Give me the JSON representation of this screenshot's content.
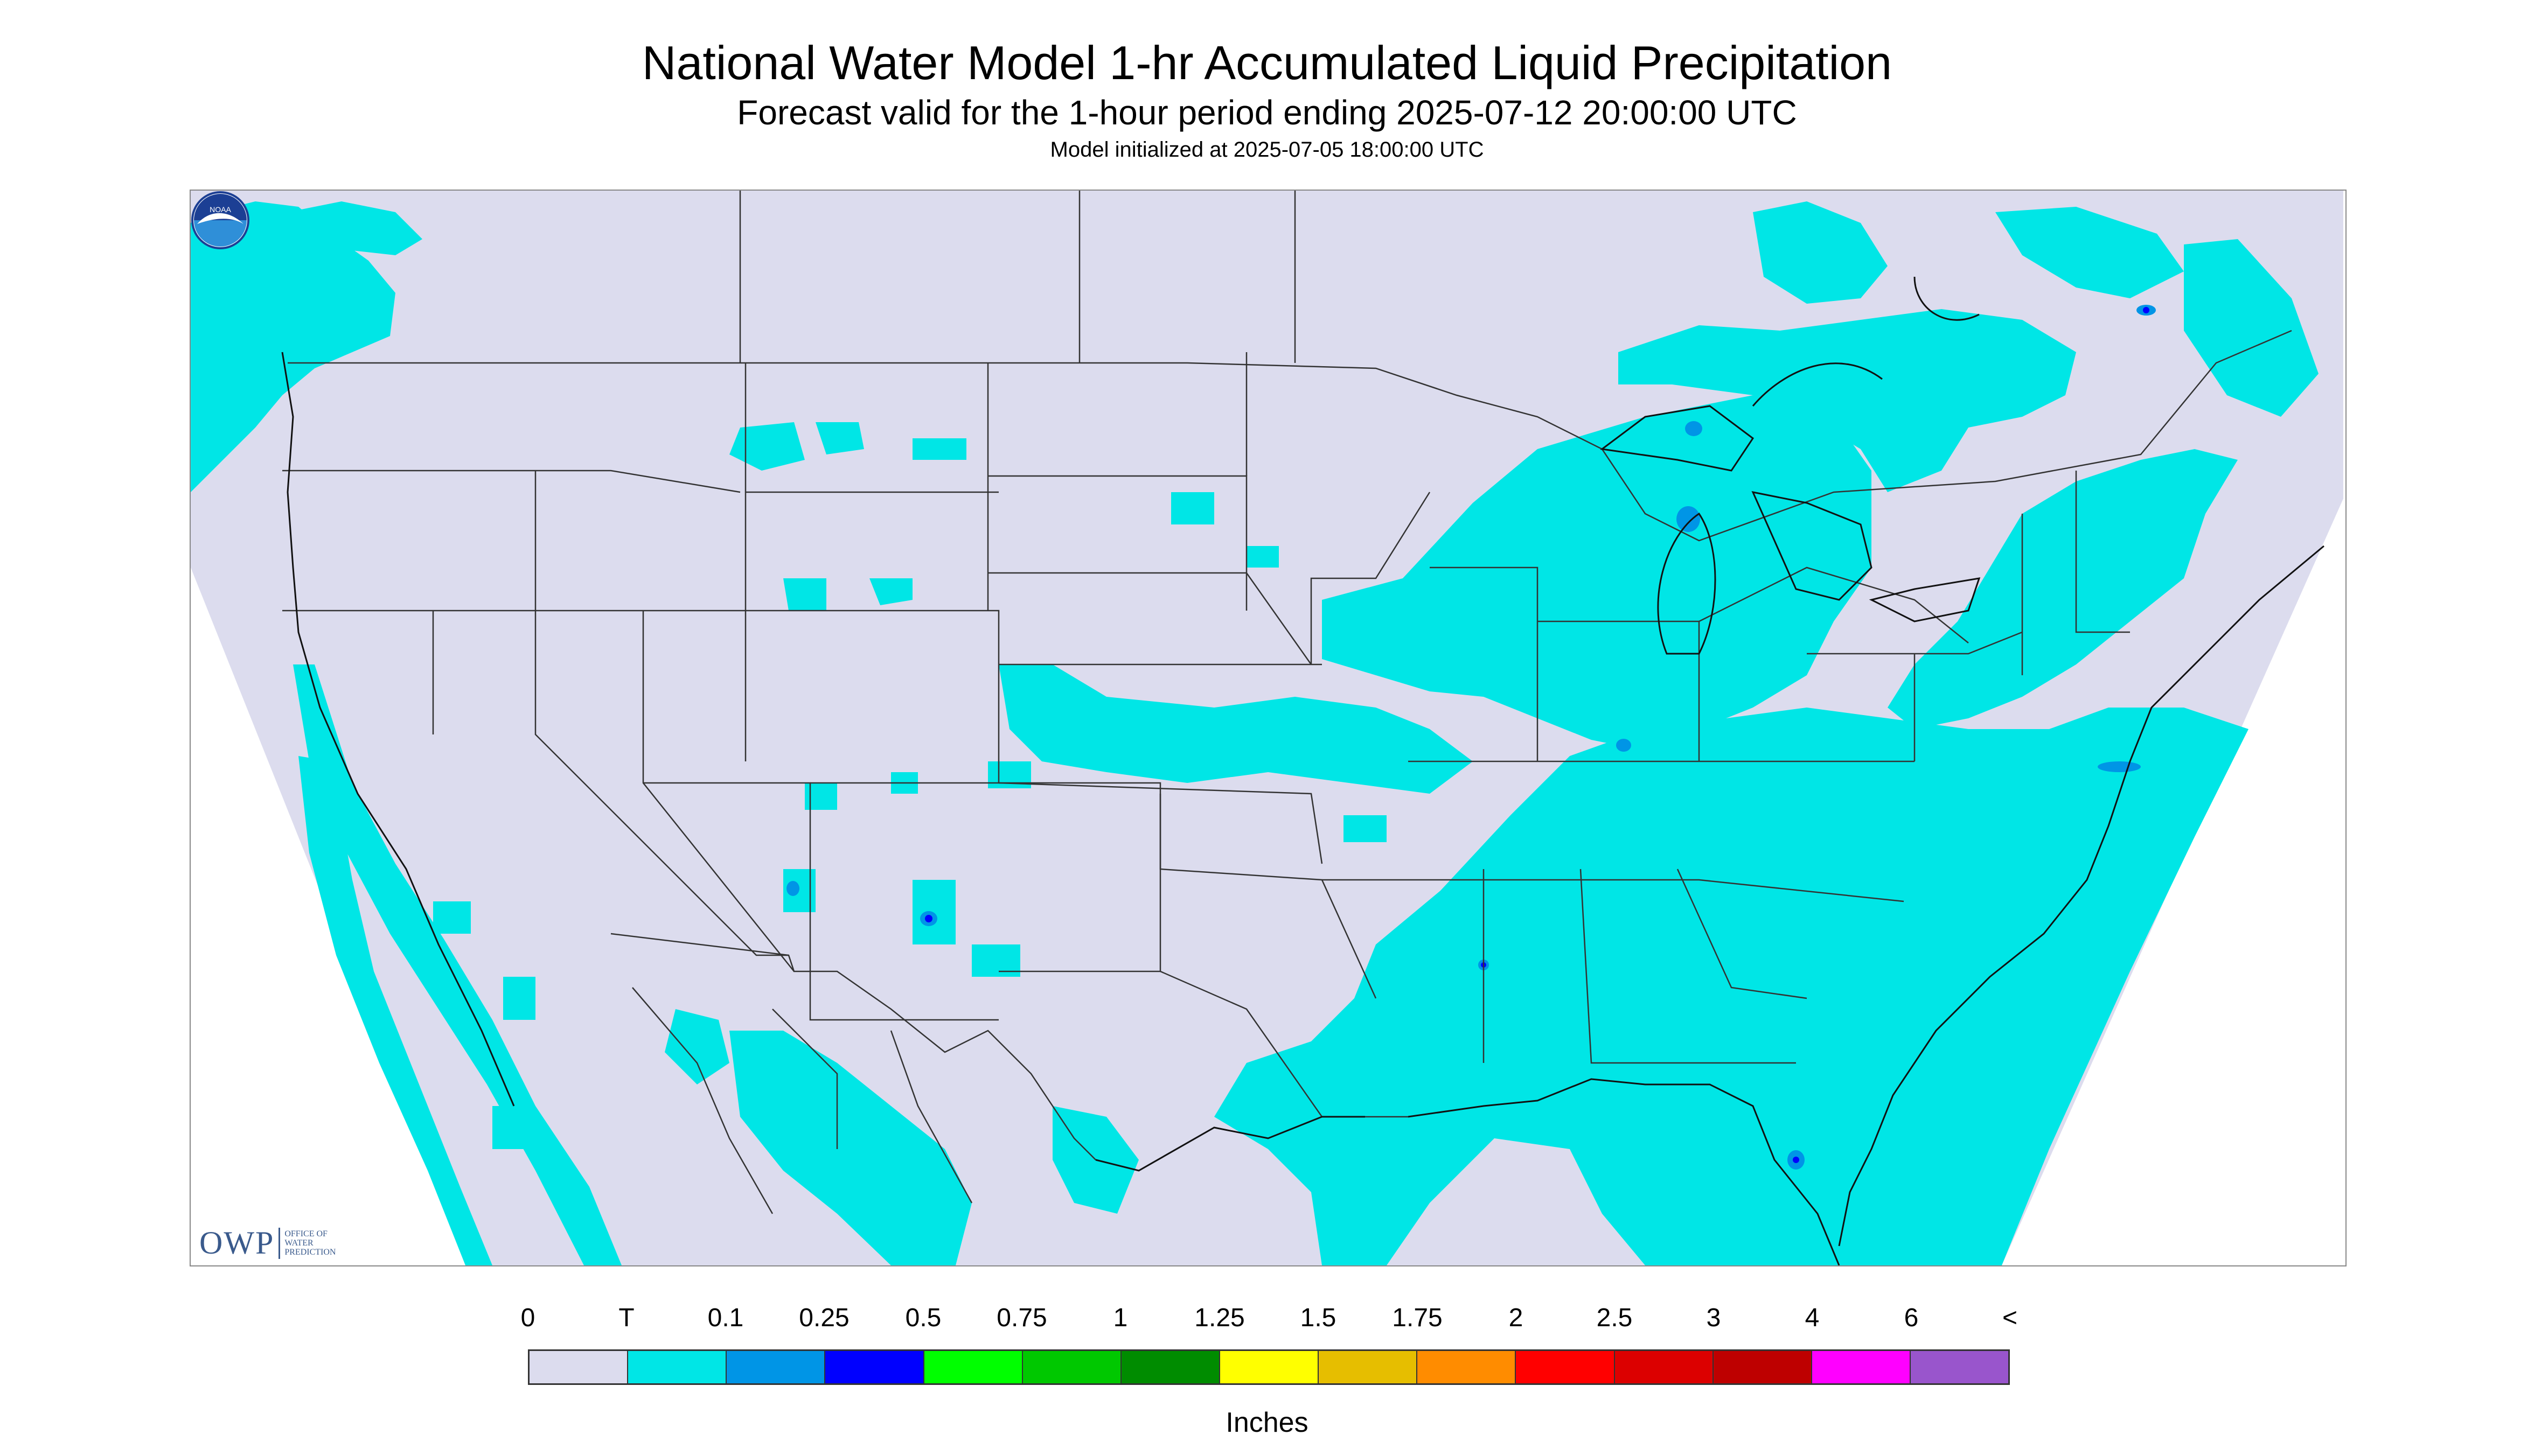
{
  "header": {
    "title": "National Water Model 1-hr Accumulated Liquid Precipitation",
    "subtitle": "Forecast valid for the 1-hour period ending 2025-07-12 20:00:00 UTC",
    "init_line": "Model initialized at 2025-07-05 18:00:00 UTC"
  },
  "map": {
    "background_color": "#dcdcee",
    "outside_color": "#ffffff",
    "border_color": "#333333",
    "precip_color": "#00e6e6",
    "heavy_color": "#0095e6",
    "max_color": "#0000ff"
  },
  "logos": {
    "owp": {
      "mark": "OWP",
      "text_lines": [
        "OFFICE OF",
        "WATER",
        "PREDICTION"
      ],
      "icon": "owp-logo"
    },
    "noaa": {
      "text": "NOAA",
      "icon": "noaa-logo"
    }
  },
  "legend": {
    "units": "Inches",
    "labels": [
      "0",
      "T",
      "0.1",
      "0.25",
      "0.5",
      "0.75",
      "1",
      "1.25",
      "1.5",
      "1.75",
      "2",
      "2.5",
      "3",
      "4",
      "6",
      "<"
    ],
    "colors": [
      "#dcdcee",
      "#00e6e6",
      "#0095e6",
      "#0000ff",
      "#00ff00",
      "#00c800",
      "#008c00",
      "#ffff00",
      "#e6be00",
      "#ff8c00",
      "#ff0000",
      "#dc0000",
      "#be0000",
      "#ff00ff",
      "#9955cc"
    ]
  }
}
